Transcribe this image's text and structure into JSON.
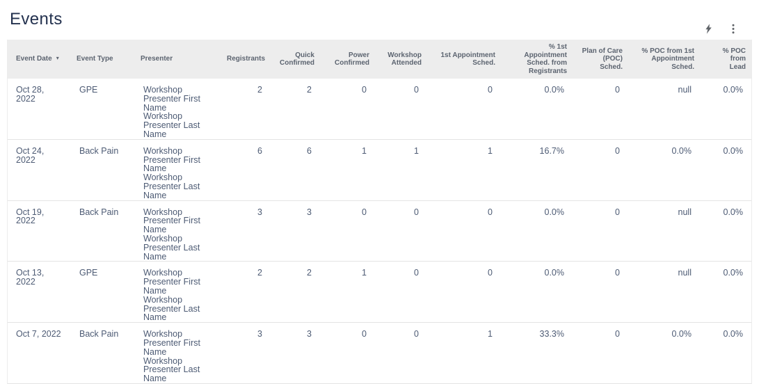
{
  "page": {
    "title": "Events"
  },
  "toolbar": {
    "icons": [
      {
        "name": "lightning-bolt-icon"
      },
      {
        "name": "kebab-menu-icon"
      }
    ]
  },
  "colors": {
    "title_text": "#24324f",
    "header_bg": "#ededed",
    "header_text": "#5c6470",
    "cell_text": "#4d5b74",
    "row_border": "#e4e4e4",
    "icon": "#5f6368"
  },
  "table": {
    "sort_indicator": "▾",
    "columns": [
      {
        "key": "event-date",
        "label": "Event Date",
        "align": "left",
        "sorted": true
      },
      {
        "key": "event-type",
        "label": "Event Type",
        "align": "left"
      },
      {
        "key": "presenter",
        "label": "Presenter",
        "align": "left"
      },
      {
        "key": "registrants",
        "label": "Registrants",
        "align": "right"
      },
      {
        "key": "quick-confirmed",
        "label": "Quick\nConfirmed",
        "align": "right"
      },
      {
        "key": "power-confirmed",
        "label": "Power\nConfirmed",
        "align": "right"
      },
      {
        "key": "workshop-attended",
        "label": "Workshop\nAttended",
        "align": "right"
      },
      {
        "key": "first-appointment-sched",
        "label": "1st Appointment\nSched.",
        "align": "right"
      },
      {
        "key": "pct-first-appointment-sched-from-registrants",
        "label": "% 1st\nAppointment\nSched. from\nRegistrants",
        "align": "right"
      },
      {
        "key": "plan-of-care-poc-sched",
        "label": "Plan of Care\n(POC)\nSched.",
        "align": "right"
      },
      {
        "key": "pct-poc-from-first-appointment-sched",
        "label": "% POC from 1st\nAppointment\nSched.",
        "align": "right"
      },
      {
        "key": "pct-poc-from-lead",
        "label": "% POC from\nLead",
        "align": "right"
      }
    ],
    "rows": [
      {
        "cells": [
          "Oct 28, 2022",
          "GPE",
          "Workshop\nPresenter First\nName\nWorkshop\nPresenter Last\nName",
          "2",
          "2",
          "0",
          "0",
          "0",
          "0.0%",
          "0",
          "null",
          "0.0%"
        ]
      },
      {
        "cells": [
          "Oct 24, 2022",
          "Back Pain",
          "Workshop\nPresenter First\nName\nWorkshop\nPresenter Last\nName",
          "6",
          "6",
          "1",
          "1",
          "1",
          "16.7%",
          "0",
          "0.0%",
          "0.0%"
        ]
      },
      {
        "cells": [
          "Oct 19, 2022",
          "Back Pain",
          "Workshop\nPresenter First\nName\nWorkshop\nPresenter Last\nName",
          "3",
          "3",
          "0",
          "0",
          "0",
          "0.0%",
          "0",
          "null",
          "0.0%"
        ]
      },
      {
        "cells": [
          "Oct 13, 2022",
          "GPE",
          "Workshop\nPresenter First\nName\nWorkshop\nPresenter Last\nName",
          "2",
          "2",
          "1",
          "0",
          "0",
          "0.0%",
          "0",
          "null",
          "0.0%"
        ]
      },
      {
        "cells": [
          "Oct 7, 2022",
          "Back Pain",
          "Workshop\nPresenter First\nName\nWorkshop\nPresenter Last\nName",
          "3",
          "3",
          "0",
          "0",
          "1",
          "33.3%",
          "0",
          "0.0%",
          "0.0%"
        ]
      }
    ]
  }
}
